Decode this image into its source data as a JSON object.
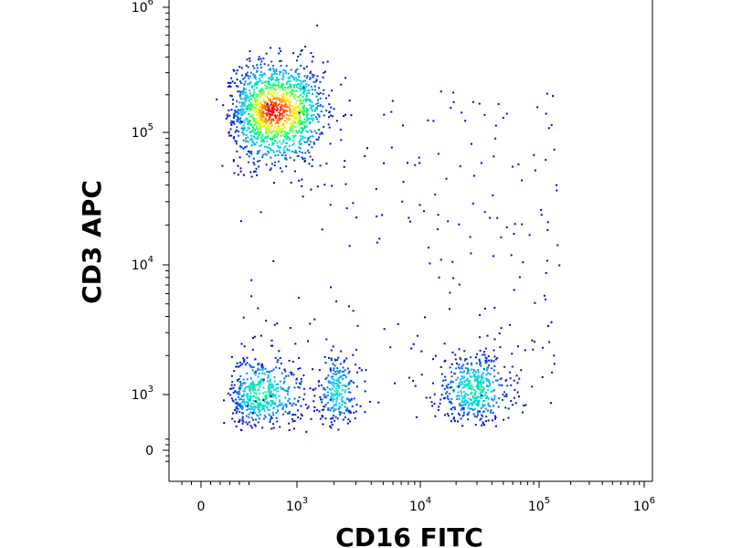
{
  "chart_data": {
    "type": "scatter",
    "subtype": "flow-cytometry-density-dot-plot",
    "title": "",
    "xlabel": "CD16 FITC",
    "ylabel": "CD3 APC",
    "x_scale": "biexponential",
    "y_scale": "biexponential",
    "xlim": [
      -300,
      1000000
    ],
    "ylim": [
      -300,
      1000000
    ],
    "x_ticks": [
      {
        "value": 0,
        "base": "0",
        "exp": ""
      },
      {
        "value": 1000,
        "base": "10",
        "exp": "3"
      },
      {
        "value": 10000,
        "base": "10",
        "exp": "4"
      },
      {
        "value": 100000,
        "base": "10",
        "exp": "5"
      },
      {
        "value": 1000000,
        "base": "10",
        "exp": "6"
      }
    ],
    "y_ticks": [
      {
        "value": 0,
        "base": "0",
        "exp": ""
      },
      {
        "value": 1000,
        "base": "10",
        "exp": "3"
      },
      {
        "value": 10000,
        "base": "10",
        "exp": "4"
      },
      {
        "value": 100000,
        "base": "10",
        "exp": "5"
      },
      {
        "value": 1000000,
        "base": "10",
        "exp": "6"
      }
    ],
    "grid": false,
    "legend": "none",
    "color_scale": [
      "#0000cc",
      "#00ccff",
      "#00ff66",
      "#ffff00",
      "#ff0000"
    ],
    "populations": [
      {
        "cx": 750,
        "cy": 150000,
        "spread_x": 0.17,
        "spread_y": 0.2,
        "n": 1400,
        "peak_density": 1.0
      },
      {
        "cx": 600,
        "cy": 1000,
        "spread_x": 0.14,
        "spread_y": 0.16,
        "n": 520,
        "peak_density": 0.45
      },
      {
        "cx": 2100,
        "cy": 1050,
        "spread_x": 0.08,
        "spread_y": 0.15,
        "n": 240,
        "peak_density": 0.35
      },
      {
        "cx": 28000,
        "cy": 1100,
        "spread_x": 0.16,
        "spread_y": 0.15,
        "n": 480,
        "peak_density": 0.4
      }
    ]
  }
}
